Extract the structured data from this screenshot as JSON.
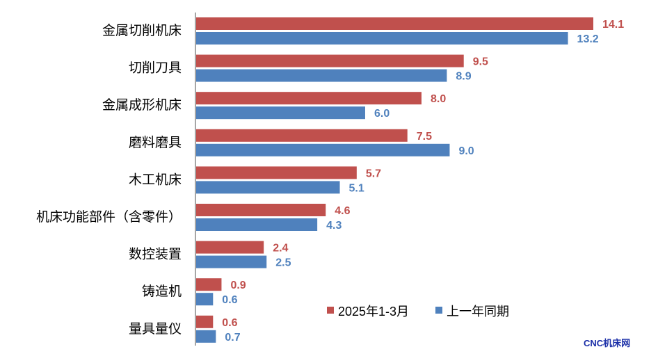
{
  "chart_data": {
    "type": "bar",
    "orientation": "horizontal",
    "categories": [
      "金属切削机床",
      "切削刀具",
      "金属成形机床",
      "磨料磨具",
      "木工机床",
      "机床功能部件（含零件）",
      "数控装置",
      "铸造机",
      "量具量仪"
    ],
    "series": [
      {
        "name": "2025年1-3月",
        "color": "#c0504d",
        "values": [
          14.1,
          9.5,
          8.0,
          7.5,
          5.7,
          4.6,
          2.4,
          0.9,
          0.6
        ]
      },
      {
        "name": "上一年同期",
        "color": "#4f81bd",
        "values": [
          13.2,
          8.9,
          6.0,
          9.0,
          5.1,
          4.3,
          2.5,
          0.6,
          0.7
        ]
      }
    ],
    "xlim": [
      0,
      14.1
    ],
    "grid": false,
    "legend_position": "bottom-right",
    "title": "",
    "xlabel": "",
    "ylabel": ""
  },
  "watermark": "CNC机床网",
  "colors": {
    "axis": "#888888",
    "label_text": "#000000"
  }
}
